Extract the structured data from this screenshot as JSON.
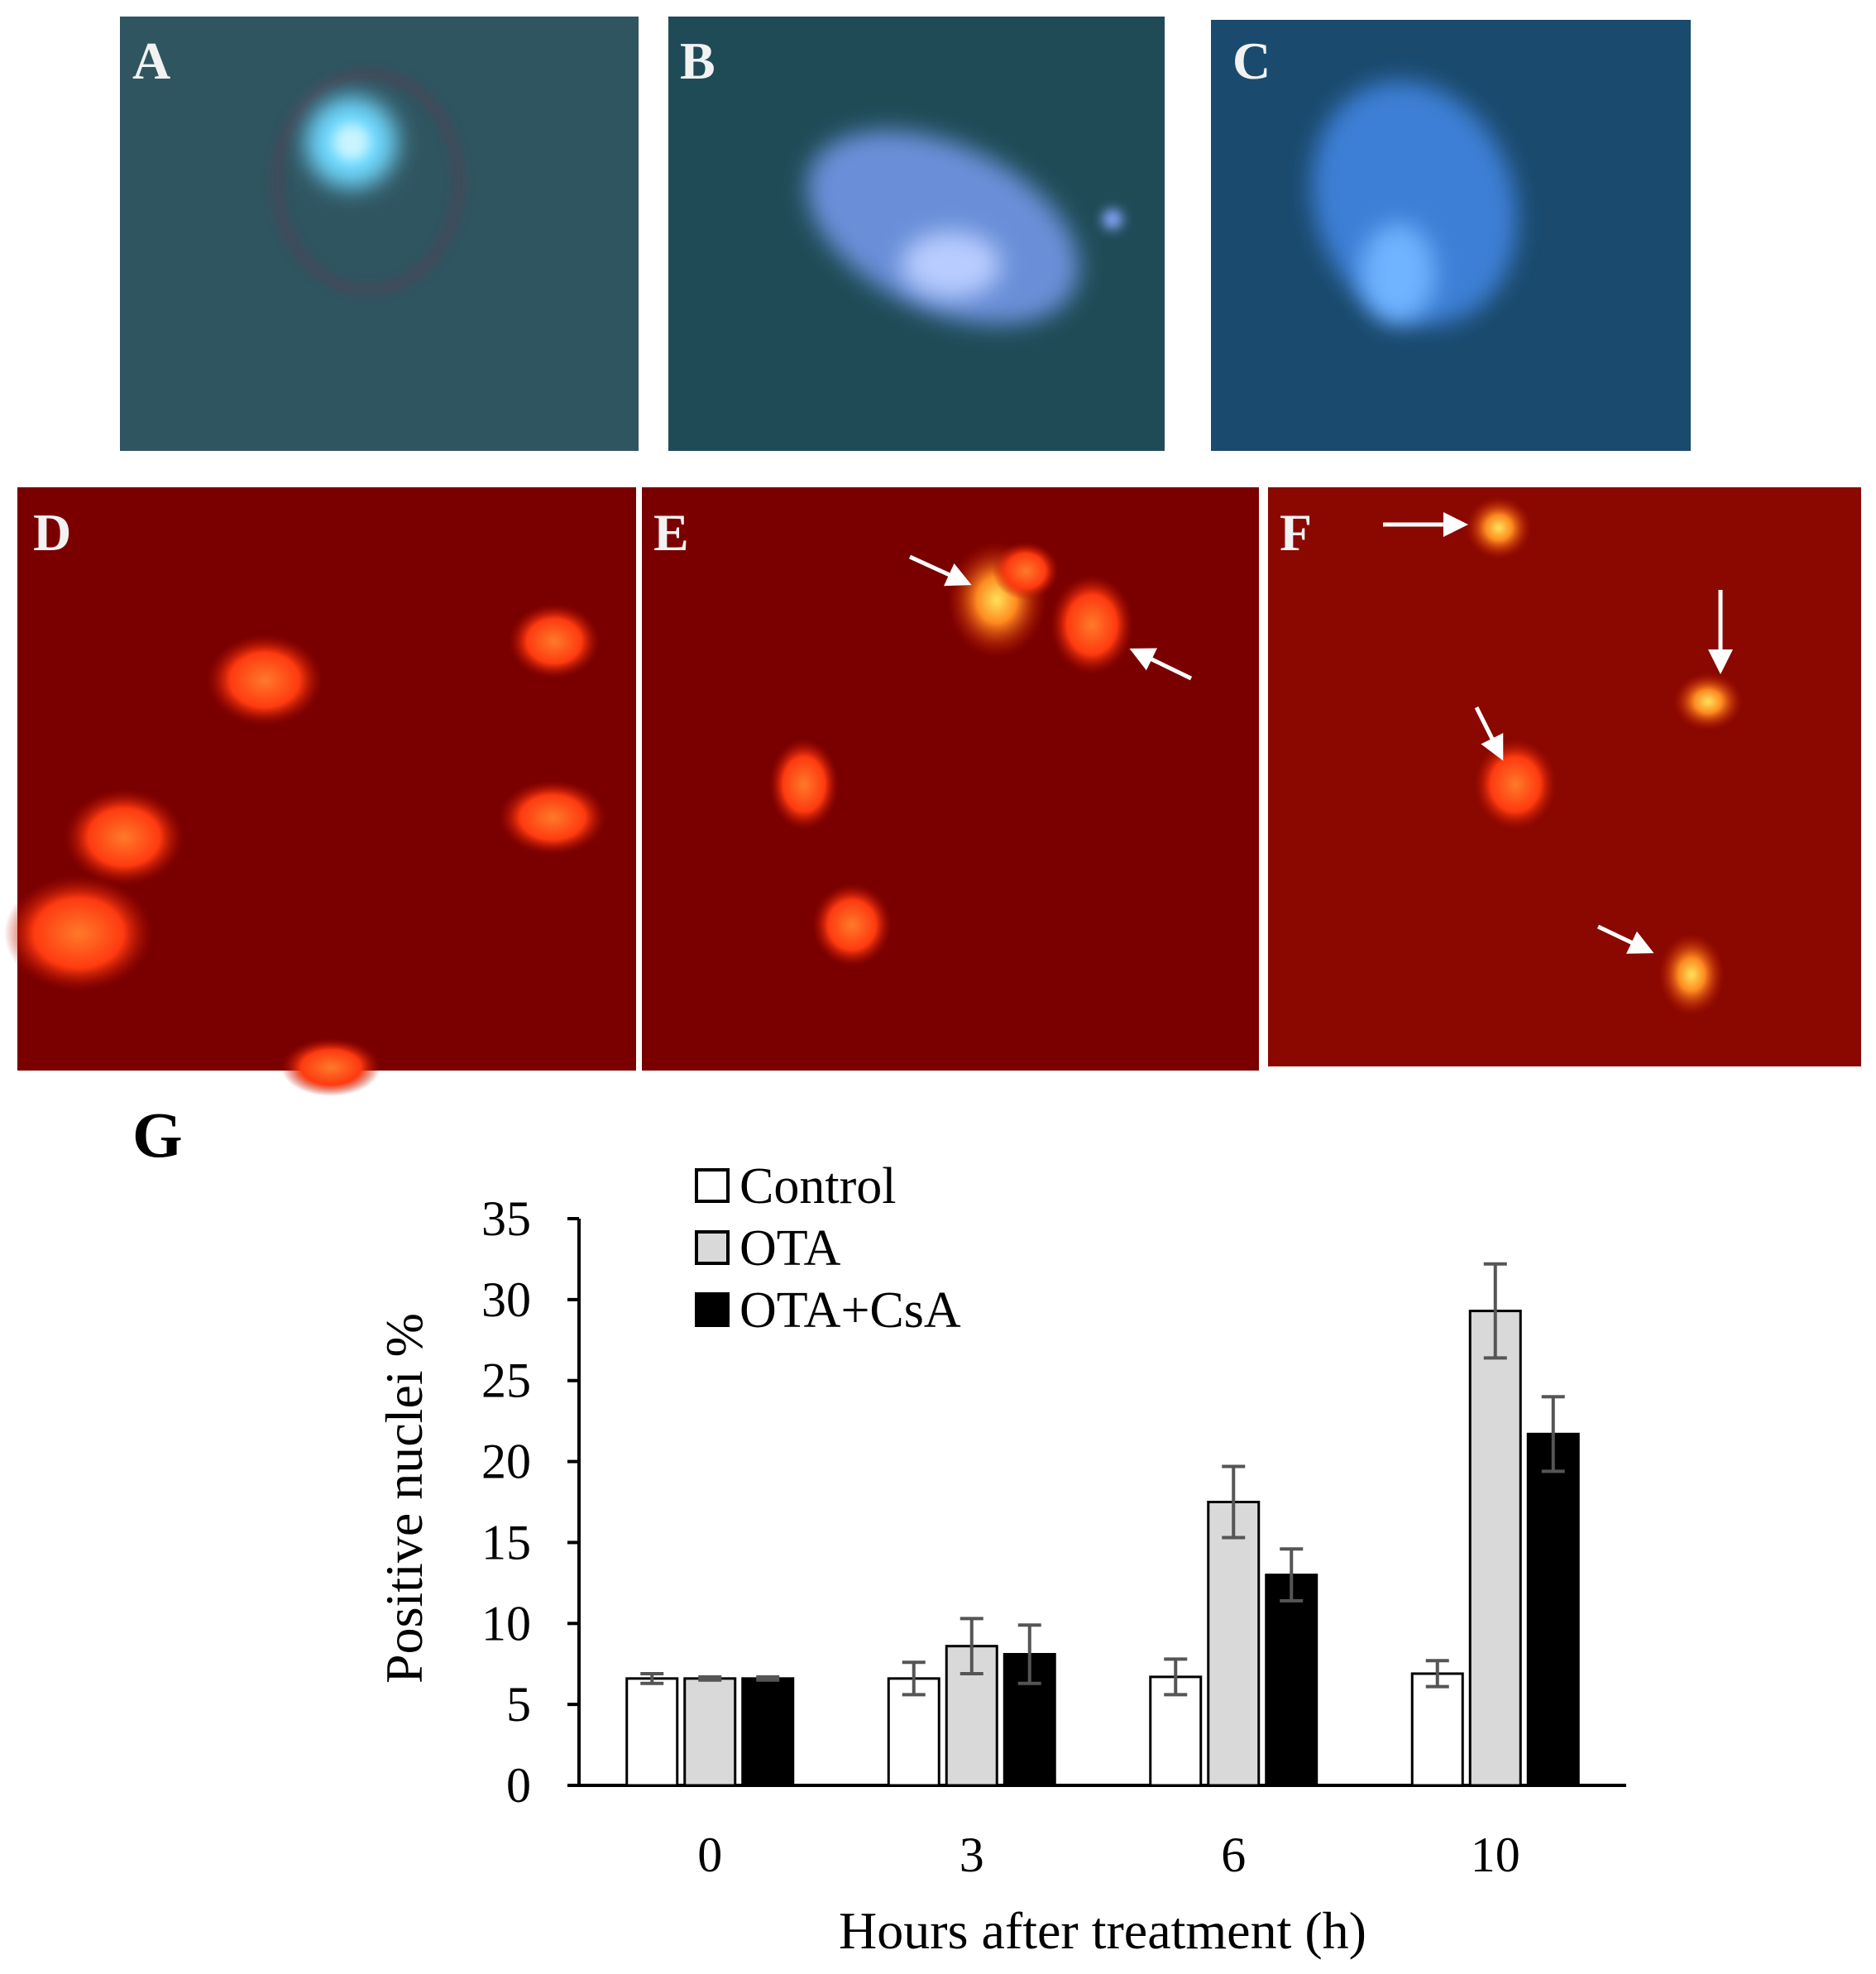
{
  "panels": [
    {
      "label": "A"
    },
    {
      "label": "B"
    },
    {
      "label": "C"
    },
    {
      "label": "D"
    },
    {
      "label": "E"
    },
    {
      "label": "F"
    }
  ],
  "chart_data": {
    "type": "bar",
    "panel_label": "G",
    "x_label": "Hours after treatment (h)",
    "y_label": "Positive nuclei %",
    "categories": [
      "0",
      "3",
      "6",
      "10"
    ],
    "series": [
      {
        "name": "Control",
        "color": "#ffffff",
        "values": [
          6.6,
          6.6,
          6.7,
          6.9
        ],
        "errors": [
          0.3,
          1.0,
          1.1,
          0.8
        ]
      },
      {
        "name": "OTA",
        "color": "#d9d9d9",
        "values": [
          6.6,
          8.6,
          17.5,
          29.3
        ],
        "errors": [
          0.1,
          1.7,
          2.2,
          2.9
        ]
      },
      {
        "name": "OTA+CsA",
        "color": "#000000",
        "values": [
          6.6,
          8.1,
          13.0,
          21.7
        ],
        "errors": [
          0.1,
          1.8,
          1.6,
          2.3
        ]
      }
    ],
    "ylim": [
      0,
      35
    ],
    "yticks": [
      0,
      5,
      10,
      15,
      20,
      25,
      30,
      35
    ],
    "grid": false,
    "legend": "top-left"
  }
}
